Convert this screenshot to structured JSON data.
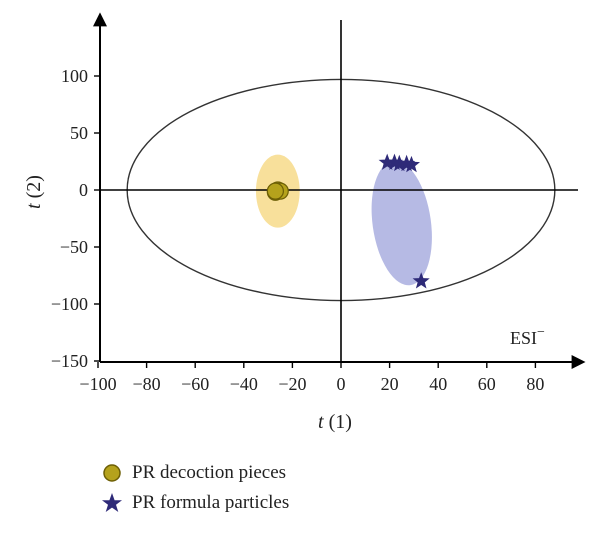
{
  "chart_data": {
    "type": "scatter",
    "title": "",
    "xlabel_var": "t",
    "xlabel_idx": "(1)",
    "ylabel_var": "t",
    "ylabel_idx": "(2)",
    "xlim": [
      -100,
      100
    ],
    "ylim": [
      -150,
      150
    ],
    "xticks": [
      -100,
      -80,
      -60,
      -40,
      -20,
      0,
      20,
      40,
      60,
      80
    ],
    "yticks": [
      -150,
      -100,
      -50,
      0,
      50,
      100
    ],
    "annotation": "ESI",
    "annotation_sup": "−",
    "confidence_ellipse": {
      "cx": 0,
      "cy": 0,
      "rx": 88,
      "ry": 97,
      "color": "#333333"
    },
    "series": [
      {
        "name": "PR decoction pieces",
        "marker": "circle",
        "color": "#b5a21c",
        "group_color": "#f5d57a",
        "group_ellipse": {
          "cx": -26,
          "cy": -1,
          "rx": 9,
          "ry": 32
        },
        "points": [
          [
            -27,
            -2
          ],
          [
            -26,
            0
          ],
          [
            -25,
            -1
          ],
          [
            -27,
            -1
          ]
        ]
      },
      {
        "name": "PR formula particles",
        "marker": "star",
        "color": "#2e2a78",
        "group_color": "#8f95d6",
        "group_ellipse": {
          "cx": 25,
          "cy": -29,
          "rx": 12,
          "ry": 55,
          "rotate": -8
        },
        "points": [
          [
            19,
            24
          ],
          [
            22,
            24
          ],
          [
            24,
            23
          ],
          [
            27,
            23
          ],
          [
            29,
            22
          ],
          [
            33,
            -80
          ]
        ]
      }
    ]
  }
}
